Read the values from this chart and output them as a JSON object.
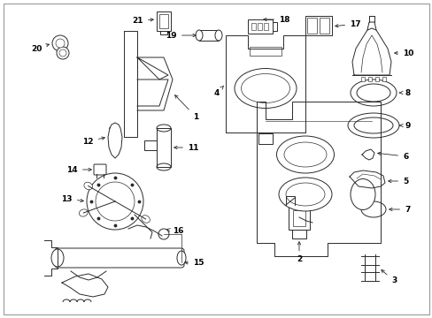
{
  "background_color": "#ffffff",
  "line_color": "#2a2a2a",
  "text_color": "#000000",
  "fig_width": 4.89,
  "fig_height": 3.6,
  "dpi": 100,
  "border_color": "#cccccc",
  "label_fontsize": 6.5,
  "lw": 0.7
}
